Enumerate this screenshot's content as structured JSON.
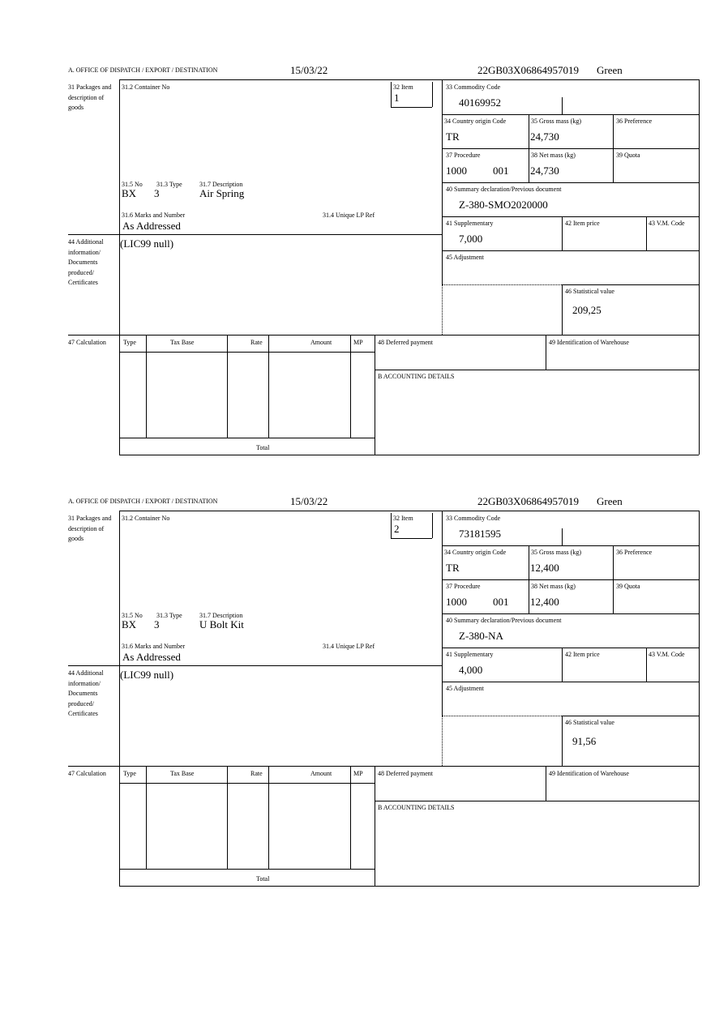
{
  "labels": {
    "office": "A.  OFFICE OF DISPATCH / EXPORT / DESTINATION",
    "packages": "31 Packages and description of goods",
    "container": "31.2 Container No",
    "item": "32 Item",
    "no": "31.5 No",
    "type_31": "31.3 Type",
    "description": "31.7 Description",
    "marks": "31.6 Marks and Number",
    "unique_ref": "31.4 Unique LP Ref",
    "additional": "44 Additional information/ Documents produced/ Certificates",
    "commodity": "33 Commodity Code",
    "country": "34 Country origin Code",
    "gross": "35 Gross mass (kg)",
    "preference": "36 Preference",
    "procedure": "37 Procedure",
    "net": "38 Net mass (kg)",
    "quota": "39 Quota",
    "summary": "40 Summary declaration/Previous document",
    "supplementary": "41 Supplementary",
    "item_price": "42 Item price",
    "vm_code": "43 V.M. Code",
    "adjustment": "45 Adjustment",
    "stat_value": "46 Statistical value",
    "calculation": "47 Calculation",
    "col_type": "Type",
    "col_tax_base": "Tax Base",
    "col_rate": "Rate",
    "col_amount": "Amount",
    "col_mp": "MP",
    "total": "Total",
    "deferred": "48 Deferred payment",
    "warehouse": "49 Identification of Warehouse",
    "accounting": "B ACCOUNTING DETAILS"
  },
  "forms": [
    {
      "date": "15/03/22",
      "reference": "22GB03X06864957019",
      "status": "Green",
      "item": "1",
      "package_no": "BX",
      "package_type": "3",
      "description": "Air Spring",
      "marks": "As Addressed",
      "additional": "(LIC99 null)",
      "commodity": "40169952",
      "country": "TR",
      "gross": "24,730",
      "procedure": "1000",
      "procedure_add": "001",
      "net": "24,730",
      "summary": "Z-380-SMO2020000",
      "supplementary": "7,000",
      "stat_value": "209,25"
    },
    {
      "date": "15/03/22",
      "reference": "22GB03X06864957019",
      "status": "Green",
      "item": "2",
      "package_no": "BX",
      "package_type": "3",
      "description": "U Bolt Kit",
      "marks": "As Addressed",
      "additional": "(LIC99 null)",
      "commodity": "73181595",
      "country": "TR",
      "gross": "12,400",
      "procedure": "1000",
      "procedure_add": "001",
      "net": "12,400",
      "summary": "Z-380-NA",
      "supplementary": "4,000",
      "stat_value": "91,56"
    }
  ]
}
